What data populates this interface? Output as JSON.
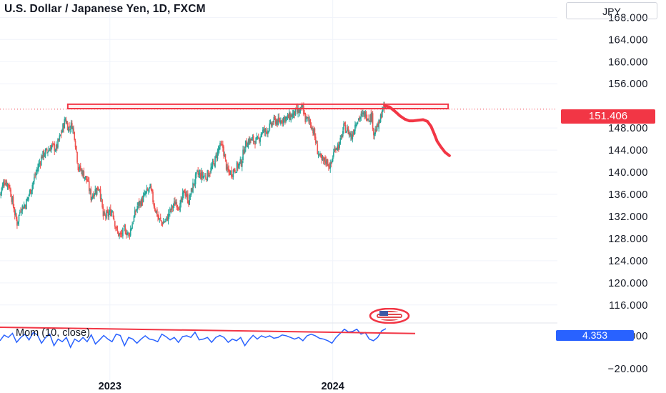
{
  "header": {
    "title": "U.S. Dollar / Japanese Yen, 1D, FXCM",
    "currency": "JPY"
  },
  "indicator": {
    "legend": "Mom (10, close)",
    "value_label": "4.353"
  },
  "last_price_label": "151.406",
  "colors": {
    "up": "#26a69a",
    "down": "#ef5350",
    "annotation": "#f23645",
    "momentum": "#2962ff",
    "grid": "#f0f3fa"
  },
  "chart_data": [
    {
      "type": "candlestick",
      "title": "U.S. Dollar / Japanese Yen, 1D, FXCM",
      "y_axis_ticks": [
        "168.000",
        "164.000",
        "160.000",
        "156.000",
        "148.000",
        "144.000",
        "140.000",
        "136.000",
        "132.000",
        "128.000",
        "124.000",
        "120.000",
        "116.000"
      ],
      "y_ticks_values": [
        168,
        164,
        160,
        156,
        148,
        144,
        140,
        136,
        132,
        128,
        124,
        120,
        116
      ],
      "ylim": [
        113,
        170.5
      ],
      "x_axis_ticks": [
        "2023",
        "2024"
      ],
      "x_tick_positions": [
        "2023-01-01",
        "2024-01-01"
      ],
      "xlim": [
        "2022-07-05",
        "2024-03-28"
      ],
      "last_price": 151.406,
      "resistance_zone": [
        151.5,
        152.3
      ],
      "close_series": [
        [
          "2022-07-05",
          136.0
        ],
        [
          "2022-07-12",
          138.5
        ],
        [
          "2022-07-20",
          137.6
        ],
        [
          "2022-07-28",
          133.2
        ],
        [
          "2022-08-02",
          130.8
        ],
        [
          "2022-08-08",
          133.5
        ],
        [
          "2022-08-16",
          134.2
        ],
        [
          "2022-08-24",
          136.8
        ],
        [
          "2022-08-30",
          138.8
        ],
        [
          "2022-09-05",
          140.9
        ],
        [
          "2022-09-12",
          143.0
        ],
        [
          "2022-09-20",
          143.8
        ],
        [
          "2022-09-28",
          144.7
        ],
        [
          "2022-10-05",
          144.3
        ],
        [
          "2022-10-12",
          146.6
        ],
        [
          "2022-10-20",
          149.6
        ],
        [
          "2022-10-25",
          148.0
        ],
        [
          "2022-10-31",
          148.6
        ],
        [
          "2022-11-04",
          146.6
        ],
        [
          "2022-11-10",
          141.0
        ],
        [
          "2022-11-18",
          139.8
        ],
        [
          "2022-11-25",
          138.4
        ],
        [
          "2022-12-01",
          135.5
        ],
        [
          "2022-12-08",
          136.7
        ],
        [
          "2022-12-15",
          137.3
        ],
        [
          "2022-12-21",
          132.0
        ],
        [
          "2022-12-29",
          132.3
        ],
        [
          "2023-01-05",
          133.2
        ],
        [
          "2023-01-12",
          129.3
        ],
        [
          "2023-01-18",
          128.4
        ],
        [
          "2023-01-25",
          129.7
        ],
        [
          "2023-02-01",
          128.6
        ],
        [
          "2023-02-08",
          131.3
        ],
        [
          "2023-02-15",
          133.9
        ],
        [
          "2023-02-22",
          134.8
        ],
        [
          "2023-03-01",
          136.2
        ],
        [
          "2023-03-08",
          137.1
        ],
        [
          "2023-03-14",
          134.2
        ],
        [
          "2023-03-22",
          131.5
        ],
        [
          "2023-03-28",
          130.8
        ],
        [
          "2023-04-04",
          131.5
        ],
        [
          "2023-04-12",
          133.5
        ],
        [
          "2023-04-19",
          134.6
        ],
        [
          "2023-04-26",
          133.8
        ],
        [
          "2023-05-03",
          136.7
        ],
        [
          "2023-05-10",
          134.7
        ],
        [
          "2023-05-17",
          137.6
        ],
        [
          "2023-05-24",
          139.7
        ],
        [
          "2023-05-31",
          139.4
        ],
        [
          "2023-06-07",
          139.2
        ],
        [
          "2023-06-14",
          140.2
        ],
        [
          "2023-06-21",
          141.8
        ],
        [
          "2023-06-29",
          144.6
        ],
        [
          "2023-07-05",
          144.5
        ],
        [
          "2023-07-12",
          140.2
        ],
        [
          "2023-07-19",
          139.9
        ],
        [
          "2023-07-28",
          141.0
        ],
        [
          "2023-08-04",
          141.8
        ],
        [
          "2023-08-10",
          144.8
        ],
        [
          "2023-08-17",
          145.8
        ],
        [
          "2023-08-24",
          145.8
        ],
        [
          "2023-08-31",
          145.6
        ],
        [
          "2023-09-07",
          147.4
        ],
        [
          "2023-09-14",
          147.4
        ],
        [
          "2023-09-21",
          148.4
        ],
        [
          "2023-09-28",
          149.4
        ],
        [
          "2023-10-05",
          149.0
        ],
        [
          "2023-10-12",
          149.8
        ],
        [
          "2023-10-19",
          149.8
        ],
        [
          "2023-10-26",
          150.3
        ],
        [
          "2023-11-01",
          150.9
        ],
        [
          "2023-11-08",
          150.9
        ],
        [
          "2023-11-13",
          151.7
        ],
        [
          "2023-11-17",
          149.6
        ],
        [
          "2023-11-24",
          149.4
        ],
        [
          "2023-12-01",
          147.1
        ],
        [
          "2023-12-07",
          143.9
        ],
        [
          "2023-12-14",
          141.9
        ],
        [
          "2023-12-21",
          142.1
        ],
        [
          "2023-12-28",
          141.0
        ],
        [
          "2024-01-05",
          144.6
        ],
        [
          "2024-01-12",
          144.9
        ],
        [
          "2024-01-19",
          148.1
        ],
        [
          "2024-01-25",
          147.6
        ],
        [
          "2024-02-01",
          146.4
        ],
        [
          "2024-02-08",
          149.2
        ],
        [
          "2024-02-15",
          150.0
        ],
        [
          "2024-02-22",
          150.5
        ],
        [
          "2024-02-29",
          150.0
        ],
        [
          "2024-03-05",
          150.0
        ],
        [
          "2024-03-08",
          147.2
        ],
        [
          "2024-03-12",
          147.7
        ],
        [
          "2024-03-18",
          149.0
        ],
        [
          "2024-03-22",
          151.4
        ],
        [
          "2024-03-27",
          151.4
        ]
      ],
      "projection_path": [
        [
          "2024-03-26",
          152.0
        ],
        [
          "2024-04-03",
          151.8
        ],
        [
          "2024-04-12",
          151.0
        ],
        [
          "2024-04-20",
          150.2
        ],
        [
          "2024-04-28",
          149.6
        ],
        [
          "2024-05-05",
          149.3
        ],
        [
          "2024-05-12",
          149.3
        ],
        [
          "2024-05-20",
          149.4
        ],
        [
          "2024-05-28",
          149.5
        ],
        [
          "2024-06-04",
          149.2
        ],
        [
          "2024-06-10",
          148.3
        ],
        [
          "2024-06-15",
          147.0
        ],
        [
          "2024-06-20",
          145.6
        ],
        [
          "2024-06-26",
          144.6
        ],
        [
          "2024-07-03",
          143.6
        ],
        [
          "2024-07-10",
          143.0
        ]
      ]
    },
    {
      "type": "line",
      "title": "Mom (10, close)",
      "y_axis_ticks": [
        "0.000",
        "−20.000"
      ],
      "y_ticks_values": [
        0,
        -20
      ],
      "last_value": 4.353,
      "trendline": [
        [
          "2022-07-05",
          5.2
        ],
        [
          "2024-05-15",
          1.4
        ]
      ],
      "series": [
        {
          "name": "Mom (10, close)",
          "values": [
            -3,
            0.4,
            -1,
            1.5,
            -4,
            -1,
            1,
            -2.5,
            2,
            0.6,
            -4.5,
            -1,
            1,
            -6,
            -2,
            -3.6,
            -1,
            -7,
            -2,
            -3.6,
            -1,
            -3.6,
            0.6,
            -5,
            -2.5,
            0.2,
            -2,
            -3.6,
            1,
            0.2,
            -6,
            -1,
            -2,
            -4.5,
            -2,
            0,
            -2,
            -2.5,
            -3.6,
            1,
            -0.5,
            -2.5,
            -1,
            -4,
            -0.5,
            0,
            -1,
            2.2,
            -2.5,
            -2,
            -1,
            -4,
            -1,
            0.2,
            -1,
            -4,
            -2,
            -3,
            -1,
            -6,
            -2.5,
            0.3,
            -2,
            0,
            -1,
            0,
            -1.5,
            -1,
            0.5,
            0,
            -1,
            -2,
            -1,
            -3,
            0,
            1,
            0,
            -1.5,
            -2,
            -3,
            -4.5,
            -1,
            1.5,
            4,
            2.3,
            2.7,
            4,
            1,
            2,
            -2,
            -3,
            -1,
            3,
            4.35
          ]
        }
      ]
    }
  ]
}
